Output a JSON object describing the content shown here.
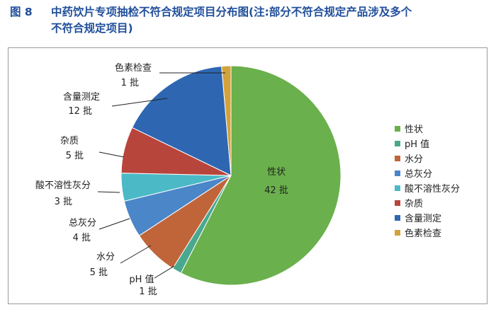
{
  "caption": {
    "number": "图 8",
    "line1": "中药饮片专项抽检不符合规定项目分布图(注:部分不符合规定产品涉及多个",
    "line2": "不符合规定项目)"
  },
  "chart_data": {
    "type": "pie",
    "title": "",
    "unit": "批",
    "legend_position": "right",
    "slices": [
      {
        "name": "性状",
        "value": 42,
        "value_label": "42 批",
        "color": "#6ab04c"
      },
      {
        "name": "pH 值",
        "value": 1,
        "value_label": "1 批",
        "color": "#4aa88f"
      },
      {
        "name": "水分",
        "value": 5,
        "value_label": "5 批",
        "color": "#c0653a"
      },
      {
        "name": "总灰分",
        "value": 4,
        "value_label": "4 批",
        "color": "#4a86c8"
      },
      {
        "name": "酸不溶性灰分",
        "value": 3,
        "value_label": "3 批",
        "color": "#4bbac6"
      },
      {
        "name": "杂质",
        "value": 5,
        "value_label": "5 批",
        "color": "#b8453c"
      },
      {
        "name": "含量测定",
        "value": 12,
        "value_label": "12 批",
        "color": "#2e66b2"
      },
      {
        "name": "色素检查",
        "value": 1,
        "value_label": "1 批",
        "color": "#d4a23a"
      }
    ]
  }
}
